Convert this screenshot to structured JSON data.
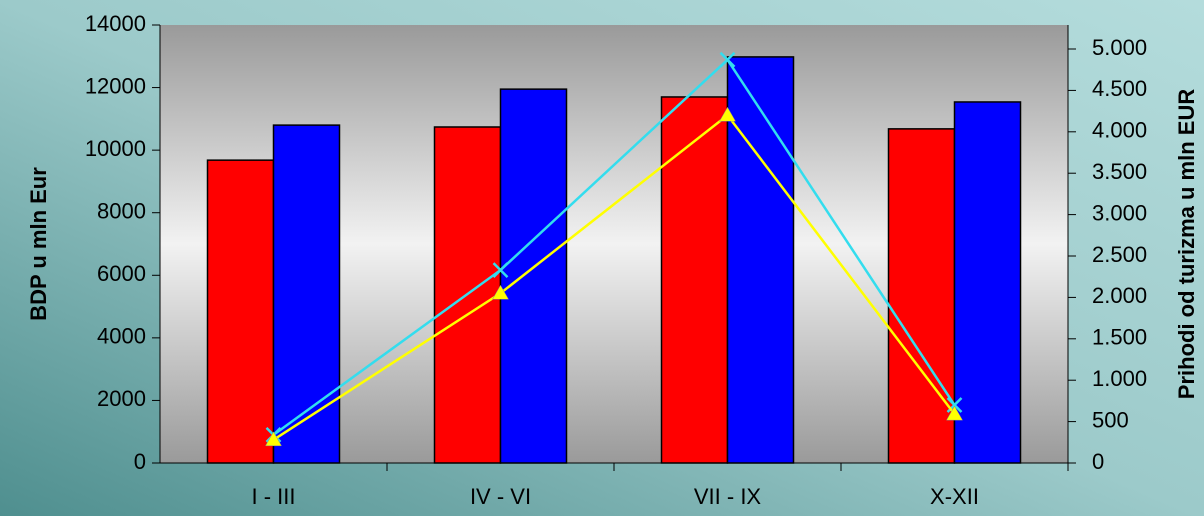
{
  "chart_data": {
    "type": "bar",
    "y_label": "BDP u mln Eur",
    "y2_label": "Prihodi od turizma u mln EUR",
    "categories": [
      "I - III",
      "IV - VI",
      "VII - IX",
      "X-XII"
    ],
    "series": [
      {
        "type": "bar",
        "color": "#ff0000",
        "values": [
          9680,
          10740,
          11700,
          10680
        ]
      },
      {
        "type": "bar",
        "color": "#0000ff",
        "values": [
          10800,
          11950,
          12980,
          11540
        ]
      },
      {
        "type": "line",
        "marker": "x",
        "color": "#33ddee",
        "axis": "y2",
        "values": [
          340,
          2330,
          4870,
          700
        ]
      },
      {
        "type": "line",
        "marker": "triangle",
        "color": "#ffff00",
        "axis": "y2",
        "values": [
          280,
          2050,
          4200,
          590
        ]
      }
    ],
    "ylim": [
      0,
      14000
    ],
    "yticks": [
      0,
      2000,
      4000,
      6000,
      8000,
      10000,
      12000,
      14000
    ],
    "y2lim": [
      0,
      5290
    ],
    "y2ticks": [
      0,
      500,
      {
        "value": 1000,
        "label": "1.000"
      },
      {
        "value": 1500,
        "label": "1.500"
      },
      {
        "value": 2000,
        "label": "2.000"
      },
      {
        "value": 2500,
        "label": "2.500"
      },
      {
        "value": 3000,
        "label": "3.000"
      },
      {
        "value": 3500,
        "label": "3.500"
      },
      {
        "value": 4000,
        "label": "4.000"
      },
      {
        "value": 4500,
        "label": "4.500"
      },
      {
        "value": 5000,
        "label": "5.000"
      }
    ]
  }
}
